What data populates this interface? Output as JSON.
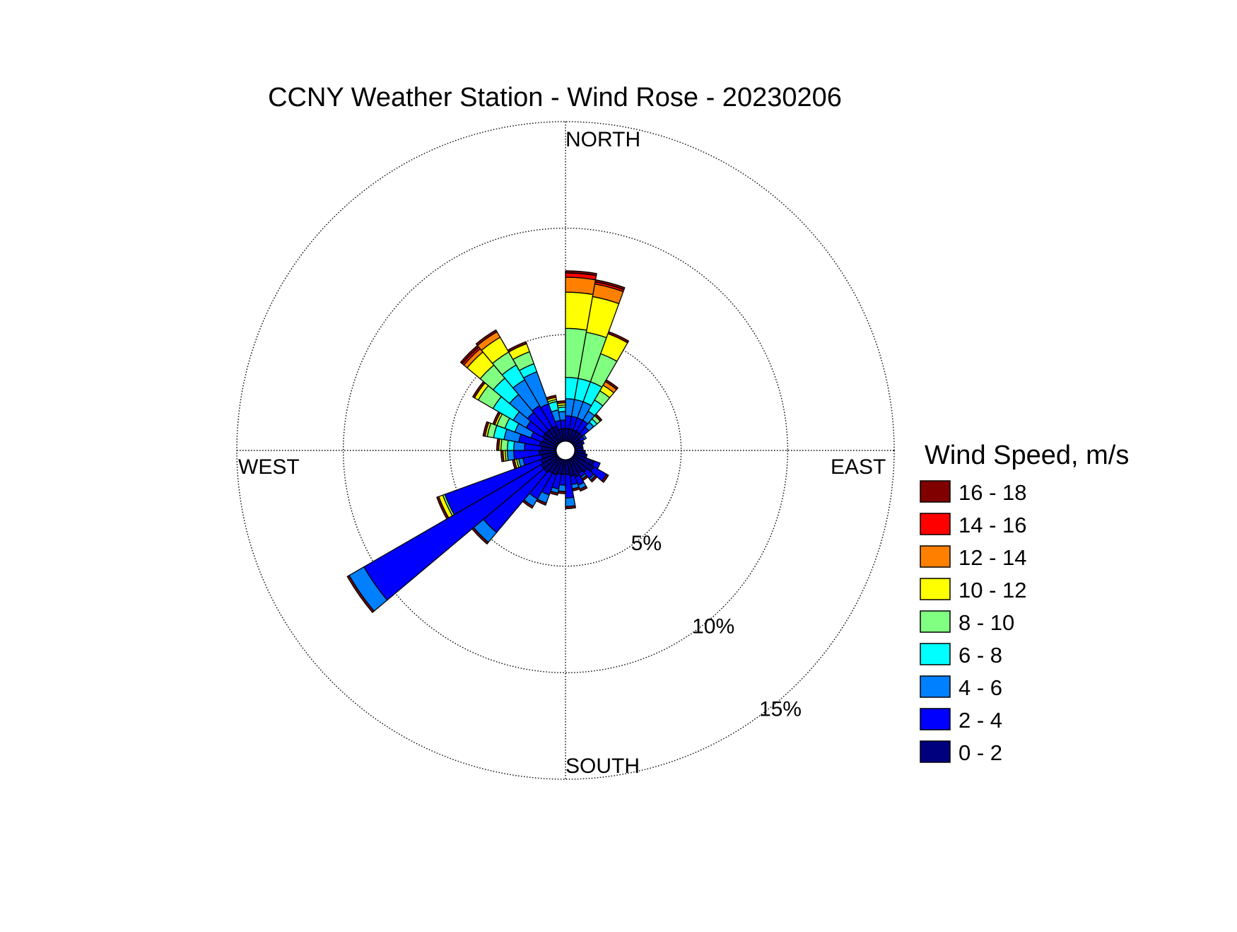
{
  "chart_data": {
    "type": "windrose",
    "title": "CCNY Weather Station - Wind Rose - 20230206",
    "direction_labels": {
      "north": "NORTH",
      "east": "EAST",
      "south": "SOUTH",
      "west": "WEST"
    },
    "radial_unit": "percent",
    "radial_max": 15,
    "radial_ticks": [
      {
        "value": 5,
        "label": "5%"
      },
      {
        "value": 10,
        "label": "10%"
      },
      {
        "value": 15,
        "label": "15%"
      }
    ],
    "grid": true,
    "legend_position": "right",
    "legend_title": "Wind Speed, m/s",
    "speed_bins": [
      {
        "label": "0 - 2",
        "color": "#00007f"
      },
      {
        "label": "2 - 4",
        "color": "#0000ff"
      },
      {
        "label": "4 - 6",
        "color": "#0080ff"
      },
      {
        "label": "6 - 8",
        "color": "#00ffff"
      },
      {
        "label": "8 - 10",
        "color": "#80ff80"
      },
      {
        "label": "10 - 12",
        "color": "#ffff00"
      },
      {
        "label": "12 - 14",
        "color": "#ff8000"
      },
      {
        "label": "14 - 16",
        "color": "#ff0000"
      },
      {
        "label": "16 - 18",
        "color": "#800000"
      }
    ],
    "sectors": [
      {
        "direction": 5,
        "cumulative_percent": [
          0.6,
          1.2,
          2.0,
          3.0,
          5.3,
          7.0,
          7.7,
          7.9,
          8.0
        ]
      },
      {
        "direction": 15,
        "cumulative_percent": [
          0.6,
          1.2,
          2.0,
          3.0,
          5.2,
          6.9,
          7.5,
          7.6,
          7.7
        ]
      },
      {
        "direction": 25,
        "cumulative_percent": [
          0.6,
          1.2,
          2.0,
          3.0,
          4.4,
          5.4,
          5.4,
          5.4,
          5.5
        ]
      },
      {
        "direction": 35,
        "cumulative_percent": [
          0.6,
          1.2,
          1.7,
          2.3,
          2.8,
          3.1,
          3.3,
          3.3,
          3.4
        ]
      },
      {
        "direction": 45,
        "cumulative_percent": [
          0.6,
          1.0,
          1.3,
          1.5,
          1.7,
          1.7,
          1.7,
          1.7,
          1.8
        ]
      },
      {
        "direction": 55,
        "cumulative_percent": [
          0.4,
          0.6,
          0.7,
          0.7,
          0.7,
          0.7,
          0.7,
          0.7,
          0.7
        ]
      },
      {
        "direction": 65,
        "cumulative_percent": [
          0.4,
          0.5,
          0.5,
          0.5,
          0.5,
          0.5,
          0.5,
          0.5,
          0.5
        ]
      },
      {
        "direction": 75,
        "cumulative_percent": [
          0.4,
          0.4,
          0.4,
          0.4,
          0.4,
          0.4,
          0.4,
          0.4,
          0.4
        ]
      },
      {
        "direction": 85,
        "cumulative_percent": [
          0.4,
          0.4,
          0.4,
          0.4,
          0.4,
          0.4,
          0.4,
          0.4,
          0.4
        ]
      },
      {
        "direction": 95,
        "cumulative_percent": [
          0.5,
          0.5,
          0.5,
          0.5,
          0.5,
          0.5,
          0.5,
          0.5,
          0.5
        ]
      },
      {
        "direction": 105,
        "cumulative_percent": [
          0.6,
          0.6,
          0.6,
          0.6,
          0.6,
          0.6,
          0.6,
          0.6,
          0.6
        ]
      },
      {
        "direction": 115,
        "cumulative_percent": [
          1.0,
          1.3,
          1.3,
          1.3,
          1.3,
          1.3,
          1.3,
          1.3,
          1.3
        ]
      },
      {
        "direction": 125,
        "cumulative_percent": [
          1.1,
          1.8,
          1.8,
          1.8,
          1.8,
          1.8,
          1.8,
          1.8,
          1.9
        ]
      },
      {
        "direction": 135,
        "cumulative_percent": [
          0.9,
          1.3,
          1.4,
          1.4,
          1.4,
          1.4,
          1.4,
          1.4,
          1.5
        ]
      },
      {
        "direction": 145,
        "cumulative_percent": [
          0.8,
          1.0,
          1.1,
          1.1,
          1.1,
          1.1,
          1.1,
          1.1,
          1.2
        ]
      },
      {
        "direction": 155,
        "cumulative_percent": [
          0.9,
          1.3,
          1.5,
          1.5,
          1.5,
          1.5,
          1.5,
          1.5,
          1.6
        ]
      },
      {
        "direction": 165,
        "cumulative_percent": [
          0.8,
          1.2,
          1.4,
          1.4,
          1.4,
          1.4,
          1.4,
          1.4,
          1.5
        ]
      },
      {
        "direction": 175,
        "cumulative_percent": [
          0.7,
          1.8,
          2.2,
          2.2,
          2.2,
          2.2,
          2.2,
          2.2,
          2.3
        ]
      },
      {
        "direction": 185,
        "cumulative_percent": [
          0.7,
          1.2,
          1.5,
          1.5,
          1.5,
          1.5,
          1.5,
          1.5,
          1.6
        ]
      },
      {
        "direction": 195,
        "cumulative_percent": [
          0.7,
          1.4,
          1.6,
          1.6,
          1.6,
          1.6,
          1.6,
          1.6,
          1.7
        ]
      },
      {
        "direction": 205,
        "cumulative_percent": [
          0.8,
          1.8,
          2.2,
          2.2,
          2.2,
          2.2,
          2.2,
          2.2,
          2.3
        ]
      },
      {
        "direction": 215,
        "cumulative_percent": [
          0.8,
          2.2,
          2.6,
          2.6,
          2.6,
          2.6,
          2.6,
          2.6,
          2.7
        ]
      },
      {
        "direction": 225,
        "cumulative_percent": [
          0.9,
          4.6,
          5.2,
          5.2,
          5.2,
          5.2,
          5.2,
          5.2,
          5.3
        ]
      },
      {
        "direction": 235,
        "cumulative_percent": [
          0.9,
          10.5,
          11.3,
          11.3,
          11.3,
          11.3,
          11.3,
          11.3,
          11.4
        ]
      },
      {
        "direction": 245,
        "cumulative_percent": [
          0.8,
          5.6,
          5.6,
          5.6,
          5.7,
          5.9,
          5.9,
          5.9,
          6.0
        ]
      },
      {
        "direction": 255,
        "cumulative_percent": [
          0.7,
          1.6,
          1.8,
          1.8,
          1.9,
          2.0,
          2.0,
          2.0,
          2.1
        ]
      },
      {
        "direction": 265,
        "cumulative_percent": [
          0.8,
          2.0,
          2.3,
          2.3,
          2.4,
          2.5,
          2.5,
          2.5,
          2.6
        ]
      },
      {
        "direction": 275,
        "cumulative_percent": [
          0.7,
          1.5,
          2.0,
          2.3,
          2.6,
          2.7,
          2.7,
          2.7,
          2.8
        ]
      },
      {
        "direction": 285,
        "cumulative_percent": [
          0.8,
          1.8,
          2.5,
          3.0,
          3.3,
          3.4,
          3.4,
          3.4,
          3.5
        ]
      },
      {
        "direction": 295,
        "cumulative_percent": [
          0.7,
          1.3,
          2.1,
          2.6,
          3.0,
          3.1,
          3.1,
          3.1,
          3.2
        ]
      },
      {
        "direction": 305,
        "cumulative_percent": [
          0.8,
          1.7,
          2.4,
          3.5,
          4.3,
          4.5,
          4.5,
          4.5,
          4.6
        ]
      },
      {
        "direction": 315,
        "cumulative_percent": [
          0.8,
          1.9,
          3.0,
          4.0,
          4.8,
          5.6,
          5.8,
          5.9,
          6.0
        ]
      },
      {
        "direction": 325,
        "cumulative_percent": [
          0.8,
          2.0,
          3.4,
          4.2,
          4.9,
          5.7,
          6.0,
          6.0,
          6.1
        ]
      },
      {
        "direction": 335,
        "cumulative_percent": [
          0.8,
          1.9,
          3.5,
          3.9,
          4.5,
          4.9,
          4.9,
          4.9,
          5.0
        ]
      },
      {
        "direction": 345,
        "cumulative_percent": [
          0.6,
          1.0,
          1.5,
          1.9,
          2.0,
          2.1,
          2.1,
          2.1,
          2.2
        ]
      },
      {
        "direction": 355,
        "cumulative_percent": [
          0.6,
          1.0,
          1.4,
          1.6,
          1.7,
          1.8,
          1.8,
          1.8,
          1.9
        ]
      }
    ]
  }
}
